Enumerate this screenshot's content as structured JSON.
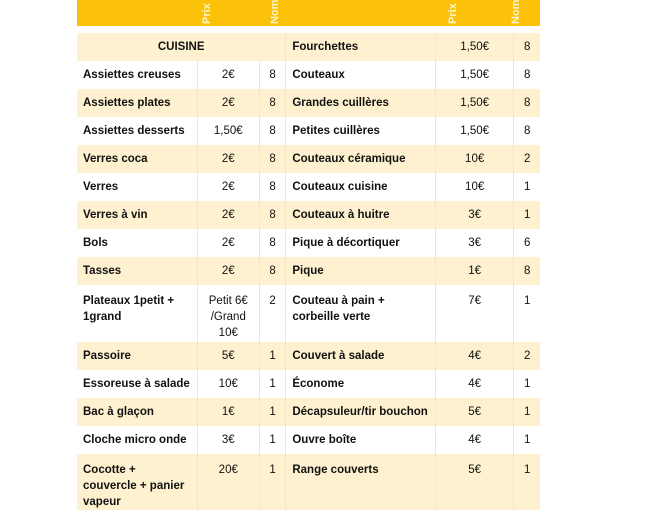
{
  "header": {
    "price_col": "Prix de c",
    "count_col": "Nom"
  },
  "section": "CUISINE",
  "rows": [
    {
      "left": null,
      "right": {
        "name": "Fourchettes",
        "price": "1,50€",
        "count": "8"
      }
    },
    {
      "left": {
        "name": "Assiettes creuses",
        "price": "2€",
        "count": "8"
      },
      "right": {
        "name": "Couteaux",
        "price": "1,50€",
        "count": "8"
      }
    },
    {
      "left": {
        "name": "Assiettes plates",
        "price": "2€",
        "count": "8"
      },
      "right": {
        "name": "Grandes cuillères",
        "price": "1,50€",
        "count": "8"
      }
    },
    {
      "left": {
        "name": "Assiettes desserts",
        "price": "1,50€",
        "count": "8"
      },
      "right": {
        "name": "Petites cuillères",
        "price": "1,50€",
        "count": "8"
      }
    },
    {
      "left": {
        "name": "Verres coca",
        "price": "2€",
        "count": "8"
      },
      "right": {
        "name": "Couteaux céramique",
        "price": "10€",
        "count": "2"
      }
    },
    {
      "left": {
        "name": "Verres",
        "price": "2€",
        "count": "8"
      },
      "right": {
        "name": "Couteaux cuisine",
        "price": "10€",
        "count": "1"
      }
    },
    {
      "left": {
        "name": "Verres à vin",
        "price": "2€",
        "count": "8"
      },
      "right": {
        "name": "Couteaux à huitre",
        "price": "3€",
        "count": "1"
      }
    },
    {
      "left": {
        "name": "Bols",
        "price": "2€",
        "count": "8"
      },
      "right": {
        "name": "Pique à décortiquer",
        "price": "3€",
        "count": "6"
      }
    },
    {
      "left": {
        "name": "Tasses",
        "price": "2€",
        "count": "8"
      },
      "right": {
        "name": "Pique",
        "price": "1€",
        "count": "8"
      }
    },
    {
      "left": {
        "name": "Plateaux 1petit + 1grand",
        "price": "Petit 6€ /Grand 10€",
        "count": "2"
      },
      "right": {
        "name": "Couteau à pain + corbeille verte",
        "price": "7€",
        "count": "1"
      }
    },
    {
      "left": {
        "name": "Passoire",
        "price": "5€",
        "count": "1"
      },
      "right": {
        "name": "Couvert à salade",
        "price": "4€",
        "count": "2"
      }
    },
    {
      "left": {
        "name": "Essoreuse à salade",
        "price": "10€",
        "count": "1"
      },
      "right": {
        "name": "Économe",
        "price": "4€",
        "count": "1"
      }
    },
    {
      "left": {
        "name": "Bac à glaçon",
        "price": "1€",
        "count": "1"
      },
      "right": {
        "name": "Décapsuleur/tir bouchon",
        "price": "5€",
        "count": "1"
      }
    },
    {
      "left": {
        "name": "Cloche micro onde",
        "price": "3€",
        "count": "1"
      },
      "right": {
        "name": "Ouvre boîte",
        "price": "4€",
        "count": "1"
      }
    },
    {
      "left": {
        "name": "Cocotte + couvercle + panier vapeur",
        "price": "20€",
        "count": "1"
      },
      "right": {
        "name": "Range couverts",
        "price": "5€",
        "count": "1"
      }
    }
  ],
  "colors": {
    "header": "#fcc20a",
    "stripe": "#fdf1cf"
  }
}
